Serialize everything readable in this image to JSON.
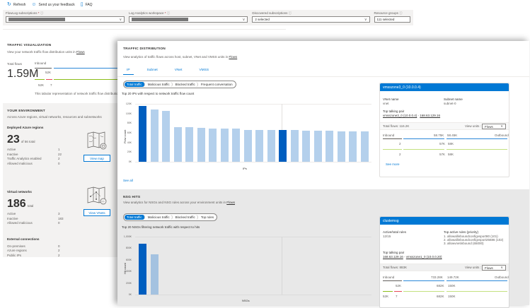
{
  "toolbar": {
    "refresh": "Refresh",
    "feedback": "Send us your feedback",
    "faq": "FAQ",
    "refresh_icon": "refresh-icon",
    "feedback_icon": "feedback-icon",
    "faq_icon": "document-icon"
  },
  "filters": {
    "flowlog": {
      "label": "FlowLog subscriptions",
      "required": "*",
      "value": ""
    },
    "workspace": {
      "label": "Log Analytics workspace",
      "required": "*",
      "value": ""
    },
    "discovered": {
      "label": "Discovered subscriptions",
      "value": "2 selected"
    },
    "resource_groups": {
      "label": "Resource groups",
      "value": "111 selected"
    }
  },
  "traffic_visualization": {
    "title": "TRAFFIC VISUALIZATION",
    "subtitle": "View your network traffic flow distribution units in",
    "subtitle_link": "Flows",
    "total_flows_label": "Total flows",
    "total_flows_value": "1.59M",
    "inbound_label": "Inbound",
    "inbound_value": "52K",
    "bottom_left": "52K",
    "bottom_right": "7",
    "description": "This tabular representation of network traffic flow distribution"
  },
  "environment": {
    "title": "YOUR ENVIRONMENT",
    "subtitle": "Across Azure regions, virtual networks, resources and subnetworks",
    "regions": {
      "title": "Deployed Azure regions",
      "count": "23",
      "count_sub": "of 56 total",
      "rows": [
        {
          "k": "Active",
          "v": "1"
        },
        {
          "k": "Inactive",
          "v": "22"
        },
        {
          "k": "Traffic Analytics enabled",
          "v": "2"
        },
        {
          "k": "Allowed malicious",
          "v": "0"
        }
      ],
      "button": "View map"
    },
    "vnets": {
      "title": "Virtual networks",
      "count": "186",
      "count_sub": "total",
      "rows": [
        {
          "k": "Active",
          "v": "3"
        },
        {
          "k": "Inactive",
          "v": "183"
        },
        {
          "k": "Allowed malicious",
          "v": "0"
        }
      ],
      "button": "View VNets"
    },
    "external": {
      "title": "External connections",
      "rows": [
        {
          "k": "On-premises",
          "v": "0"
        },
        {
          "k": "Azure regions",
          "v": "2"
        },
        {
          "k": "Public IPs",
          "v": "2"
        }
      ]
    }
  },
  "traffic_distribution": {
    "title": "TRAFFIC DISTRIBUTION",
    "subtitle": "View analytics of traffic flows across host, subnet, VNet and VMSS units in",
    "subtitle_link": "Flows",
    "tabs": [
      "IP",
      "Subnet",
      "VNet",
      "VMSS"
    ],
    "active_tab": "IP",
    "pills": [
      "Total traffic",
      "Malicious traffic",
      "Blocked traffic",
      "Frequent conversation"
    ],
    "active_pill": "Total traffic",
    "chart_caption": "Top 20 IPs with respect to network traffic flow count",
    "see_all": "See all",
    "card": {
      "header": "vmsszone3_0 (10.0.0.4)",
      "vnet_label": "VNet name",
      "vnet_value": "vnet",
      "subnet_label": "Subnet name",
      "subnet_value": "subnet-0",
      "pair_label": "Top talking pair",
      "pair_a": "vmsszone3_0 (10.0.0.4)",
      "pair_sep": " - ",
      "pair_b": "168.63.129.16",
      "total_flows": "Total flows: 116.2K",
      "view_units_label": "View units :",
      "view_units_value": "Flows",
      "inbound": "Inbound",
      "outbound": "Outbound",
      "in_total": "58.75K",
      "out_total": "58.45K",
      "rows": [
        {
          "a": "2",
          "b": "57K",
          "c": "58K"
        },
        {
          "a": "2",
          "b": "57K",
          "c": "58K"
        }
      ],
      "see_more": "See more"
    }
  },
  "nsg_hits": {
    "title": "NSG HITS",
    "subtitle": "View analytics for NSGs and NSG rules across your environment units in",
    "subtitle_link": "Flows",
    "pills": [
      "Total traffic",
      "Malicious traffic",
      "Blocked traffic",
      "Top rules"
    ],
    "active_pill": "Total traffic",
    "chart_caption": "Top 20 NSGs filtering network traffic with respect to hits",
    "card": {
      "header": "clustemsg",
      "rules_label": "Active/total rules",
      "rules_value": "12/15",
      "top_rules_label": "Top active rules (priority)",
      "top_rules": [
        "1. allowallinboundconfigvsport80 (101)",
        "2. allowallinboundconfigvsport25686 (102)",
        "3. allowvnetinbound (65000)"
      ],
      "pair_label": "Top talking pair",
      "pair_a": "168.63.129.16",
      "pair_sep": " - ",
      "pair_b": "vmsszone1_0 (10.0.0.20)",
      "total_flows": "Total flows: 883K",
      "view_units_label": "View units :",
      "view_units_value": "Flows",
      "inbound": "Inbound",
      "outbound": "Outbound",
      "in_total": "733.28K",
      "out_total": "149.72K",
      "r1_a": "52K",
      "r1_b": "682K",
      "r1_c": "150K",
      "r2_a": "52K",
      "r2_b": "7",
      "r2_c": "682K",
      "r2_d": "150K"
    }
  },
  "chart_data": [
    {
      "type": "bar",
      "title": "Top 20 IPs with respect to network traffic flow count",
      "xlabel": "IPs",
      "ylabel": "Flow count",
      "ylim": [
        0,
        120000
      ],
      "yticks": [
        "0K",
        "20K",
        "40K",
        "60K",
        "80K",
        "100K",
        "120K"
      ],
      "values": [
        116200,
        108000,
        105000,
        72000,
        71000,
        70000,
        69000,
        69000,
        69000,
        66000,
        65500,
        65500,
        65500,
        65500,
        65000,
        65000,
        65000,
        63000,
        63000,
        62500
      ],
      "highlighted": [
        0,
        12
      ],
      "colors": {
        "highlight": "#005ebf",
        "normal": "#b4d0ec"
      }
    },
    {
      "type": "bar",
      "title": "Top 20 NSGs filtering network traffic with respect to hits",
      "xlabel": "NSGs",
      "ylabel": "Hit count",
      "ylim": [
        0,
        1000000
      ],
      "yticks": [
        "0K",
        "200K",
        "400K",
        "600K",
        "800K",
        "1,000K"
      ],
      "values": [
        883000,
        700000
      ],
      "highlighted": [
        0
      ],
      "colors": {
        "highlight": "#005ebf",
        "normal": "#a4c2e0"
      }
    }
  ]
}
